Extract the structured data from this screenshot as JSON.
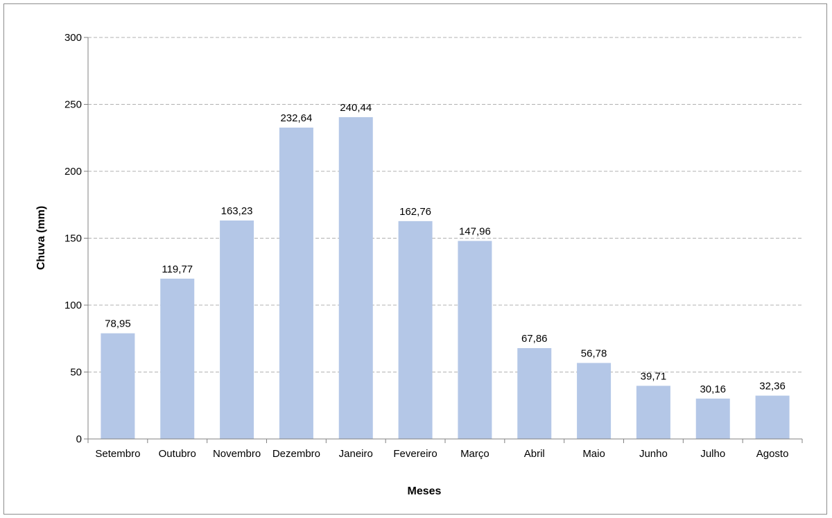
{
  "chart_data": {
    "type": "bar",
    "categories": [
      "Setembro",
      "Outubro",
      "Novembro",
      "Dezembro",
      "Janeiro",
      "Fevereiro",
      "Março",
      "Abril",
      "Maio",
      "Junho",
      "Julho",
      "Agosto"
    ],
    "values": [
      78.95,
      119.77,
      163.23,
      232.64,
      240.44,
      162.76,
      147.96,
      67.86,
      56.78,
      39.71,
      30.16,
      32.36
    ],
    "value_labels": [
      "78,95",
      "119,77",
      "163,23",
      "232,64",
      "240,44",
      "162,76",
      "147,96",
      "67,86",
      "56,78",
      "39,71",
      "30,16",
      "32,36"
    ],
    "title": "",
    "xlabel": "Meses",
    "ylabel": "Chuva (mm)",
    "ylim": [
      0,
      300
    ],
    "yticks": [
      0,
      50,
      100,
      150,
      200,
      250,
      300
    ],
    "ytick_labels": [
      "0",
      "50",
      "100",
      "150",
      "200",
      "250",
      "300"
    ],
    "grid": "horizontal dashed",
    "legend": "none",
    "colors": {
      "bar": "#b4c7e7",
      "grid": "#b0b0b0",
      "axis": "#808080"
    }
  }
}
